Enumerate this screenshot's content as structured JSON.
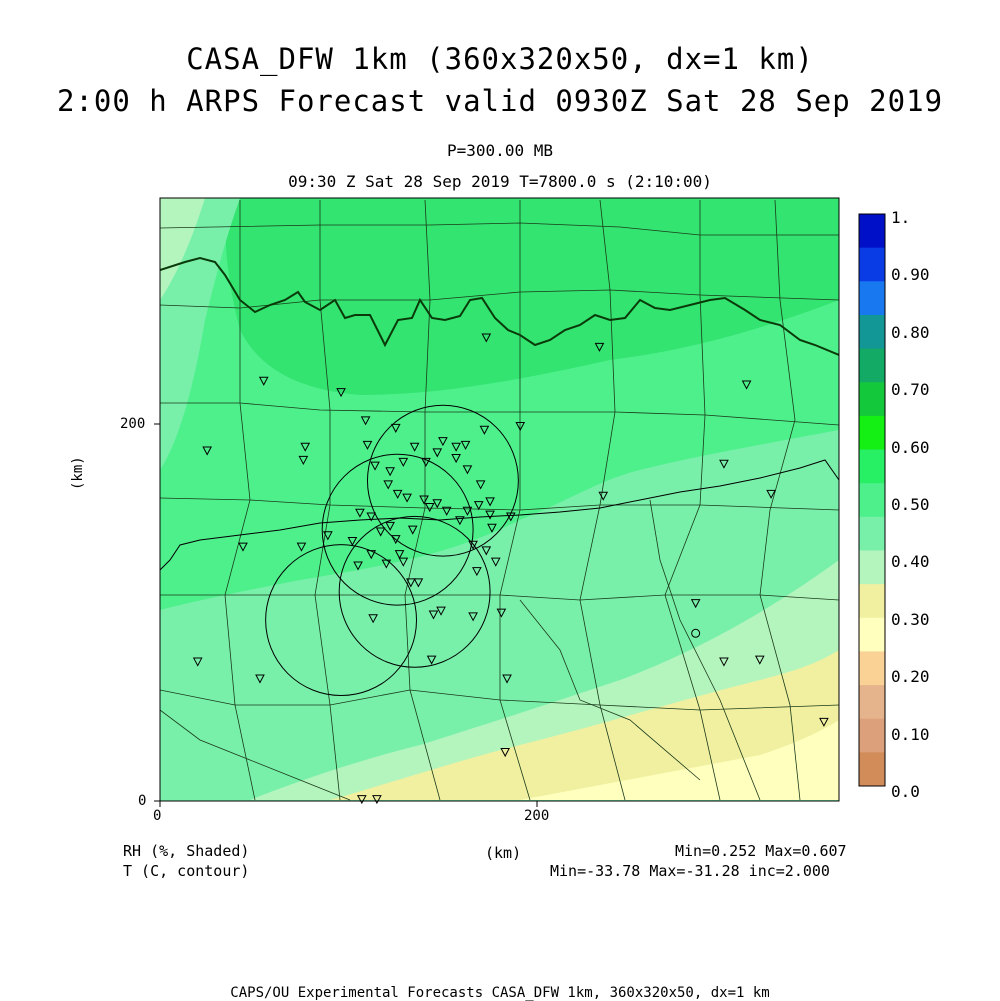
{
  "title": {
    "line1": "CASA_DFW 1km (360x320x50, dx=1 km)",
    "line2": "2:00 h ARPS Forecast valid 0930Z Sat 28 Sep 2019"
  },
  "level": "P=300.00 MB",
  "time": "09:30 Z Sat 28 Sep 2019   T=7800.0 s (2:10:00)",
  "axes": {
    "x_ticks": [
      "0",
      "200"
    ],
    "y_ticks": [
      "0",
      "200"
    ],
    "x_unit": "(km)",
    "y_unit": "(km)",
    "x_range_km": [
      0,
      360
    ],
    "y_range_km": [
      0,
      320
    ]
  },
  "colorbar": {
    "labels": [
      "1.",
      "0.90",
      "0.80",
      "0.70",
      "0.60",
      "0.50",
      "0.40",
      "0.30",
      "0.20",
      "0.10",
      "0.0"
    ],
    "colors": [
      "#0010c8",
      "#0a3ce6",
      "#1878f0",
      "#129696",
      "#12aa64",
      "#14c83c",
      "#14f014",
      "#28f064",
      "#4ef08c",
      "#78f0aa",
      "#b4f5be",
      "#f0f0a0",
      "#ffffbe",
      "#fad296",
      "#e6b48c",
      "#dca07a",
      "#d28c5a"
    ]
  },
  "legend": {
    "shaded": "RH (%, Shaded)",
    "contour": "T (C, contour)",
    "units": "(km)",
    "shaded_stats": "Min=0.252 Max=0.607",
    "contour_stats": "Min=-33.78 Max=-31.28 inc=2.000"
  },
  "footer": "CAPS/OU Experimental Forecasts  CASA_DFW 1km, 360x320x50, dx=1 km",
  "radars": [
    {
      "x": 150,
      "y": 170
    },
    {
      "x": 126,
      "y": 144
    },
    {
      "x": 135,
      "y": 111
    },
    {
      "x": 96,
      "y": 96
    }
  ],
  "stations": [
    [
      55,
      223
    ],
    [
      96,
      217
    ],
    [
      25,
      186
    ],
    [
      77,
      188
    ],
    [
      76,
      181
    ],
    [
      44,
      135
    ],
    [
      75,
      135
    ],
    [
      89,
      141
    ],
    [
      20,
      74
    ],
    [
      53,
      65
    ],
    [
      109,
      202
    ],
    [
      125,
      198
    ],
    [
      135,
      188
    ],
    [
      141,
      180
    ],
    [
      150,
      191
    ],
    [
      157,
      188
    ],
    [
      162,
      189
    ],
    [
      172,
      197
    ],
    [
      191,
      199
    ],
    [
      110,
      189
    ],
    [
      114,
      178
    ],
    [
      122,
      175
    ],
    [
      129,
      180
    ],
    [
      147,
      185
    ],
    [
      157,
      182
    ],
    [
      163,
      176
    ],
    [
      170,
      168
    ],
    [
      175,
      159
    ],
    [
      121,
      168
    ],
    [
      126,
      163
    ],
    [
      131,
      161
    ],
    [
      140,
      160
    ],
    [
      147,
      158
    ],
    [
      152,
      154
    ],
    [
      163,
      154
    ],
    [
      169,
      157
    ],
    [
      175,
      152
    ],
    [
      106,
      153
    ],
    [
      112,
      151
    ],
    [
      117,
      143
    ],
    [
      122,
      146
    ],
    [
      125,
      139
    ],
    [
      134,
      144
    ],
    [
      143,
      156
    ],
    [
      159,
      149
    ],
    [
      176,
      145
    ],
    [
      186,
      151
    ],
    [
      173,
      133
    ],
    [
      178,
      127
    ],
    [
      166,
      136
    ],
    [
      102,
      138
    ],
    [
      112,
      131
    ],
    [
      120,
      126
    ],
    [
      127,
      131
    ],
    [
      129,
      127
    ],
    [
      105,
      125
    ],
    [
      133,
      116
    ],
    [
      137,
      116
    ],
    [
      168,
      122
    ],
    [
      113,
      97
    ],
    [
      145,
      99
    ],
    [
      149,
      101
    ],
    [
      166,
      98
    ],
    [
      181,
      100
    ],
    [
      144,
      75
    ],
    [
      184,
      65
    ],
    [
      183,
      26
    ],
    [
      107,
      1
    ],
    [
      115,
      1
    ],
    [
      235,
      162
    ],
    [
      233,
      241
    ],
    [
      173,
      246
    ],
    [
      284,
      105
    ],
    [
      299,
      74
    ],
    [
      318,
      75
    ],
    [
      299,
      179
    ],
    [
      324,
      163
    ],
    [
      311,
      221
    ],
    [
      352,
      42
    ]
  ],
  "stations_circle": [
    [
      284,
      89
    ]
  ]
}
